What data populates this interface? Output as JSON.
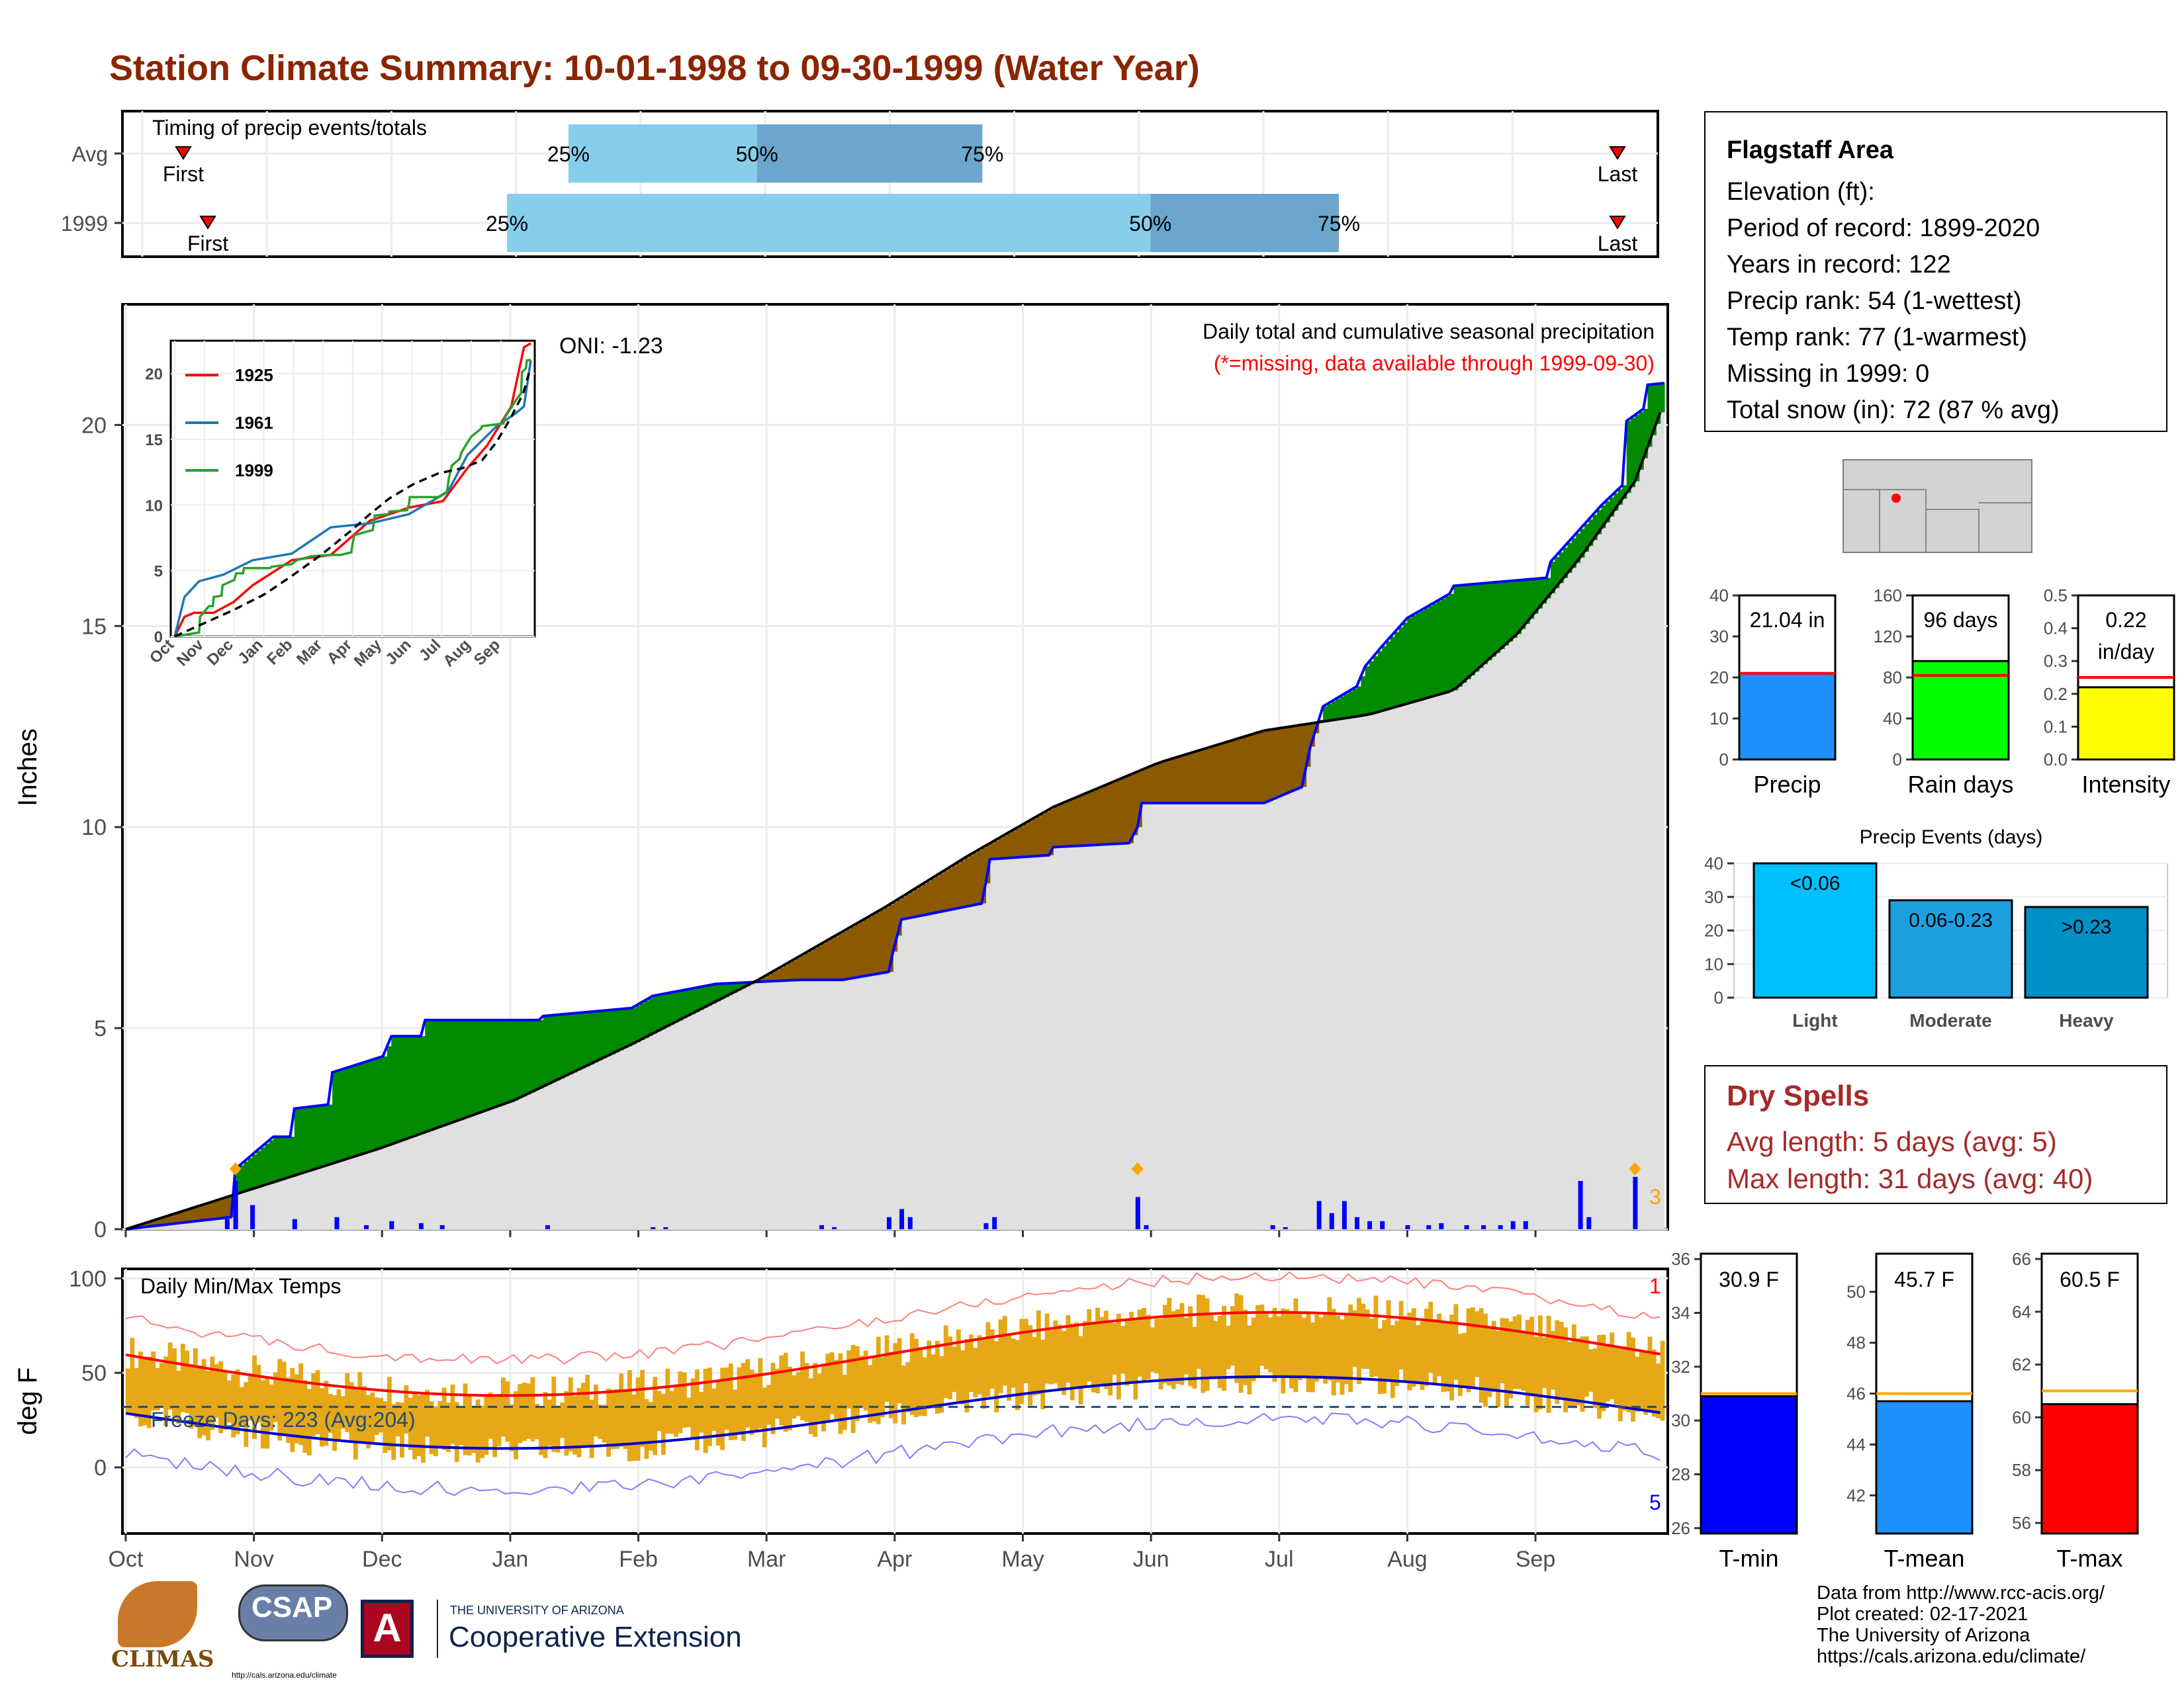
{
  "title": "Station Climate Summary: 10-01-1998 to 09-30-1999 (Water Year)",
  "colors": {
    "title": "#8B2500",
    "light_blue": "#87CEEB",
    "steel_blue": "#6CA6CD",
    "brown": "#8B5A00",
    "green": "#008B00",
    "avg_fill": "#E0E0E0",
    "obs_line": "#0000FF",
    "temp_bar": "#E6A817",
    "red": "#FF0000",
    "dry_spell": "#A52A2A"
  },
  "timing": {
    "label": "Timing of precip events/totals",
    "rows": [
      {
        "name": "Avg",
        "first": 10,
        "p25": 104,
        "p50": 150,
        "p75": 205,
        "last": 360
      },
      {
        "name": "1999",
        "first": 16,
        "p25": 89,
        "p50": 246,
        "p75": 292,
        "last": 360
      }
    ],
    "first_label": "First",
    "last_label": "Last",
    "p25_label": "25%",
    "p50_label": "50%",
    "p75_label": "75%"
  },
  "precip": {
    "ylabel": "Inches",
    "yticks": [
      0,
      5,
      10,
      15,
      20
    ],
    "ymax": 23,
    "annot1": "Daily total and cumulative seasonal precipitation",
    "annot2": "(*=missing, data available through 1999-09-30)",
    "oni": "ONI: -1.23",
    "count_label": "3",
    "avg_cumulative": [
      [
        0,
        0
      ],
      [
        30,
        1.2
      ],
      [
        60,
        2.3
      ],
      [
        90,
        3.4
      ],
      [
        105,
        4.4
      ],
      [
        130,
        5.9
      ],
      [
        160,
        7.7
      ],
      [
        190,
        9.3
      ],
      [
        220,
        10.6
      ],
      [
        255,
        11.9
      ],
      [
        290,
        12.6
      ],
      [
        310,
        12.9
      ],
      [
        330,
        13.6
      ],
      [
        345,
        15.0
      ],
      [
        365,
        17.0
      ],
      [
        380,
        19.0
      ],
      [
        395,
        20.2
      ],
      [
        420,
        20.5
      ]
    ],
    "obs_cumulative_days": [
      0,
      2,
      14,
      27,
      32,
      43,
      55,
      69,
      76,
      111,
      128,
      159,
      183,
      205,
      221,
      241,
      275,
      292,
      306,
      325,
      330,
      348,
      369,
      383,
      405,
      410,
      433,
      458,
      482,
      520
    ],
    "avg_cumulative_season": [
      [
        0,
        0
      ],
      [
        30,
        1.0
      ],
      [
        60,
        2.0
      ],
      [
        92,
        3.2
      ],
      [
        120,
        4.6
      ],
      [
        150,
        6.2
      ],
      [
        180,
        8.0
      ],
      [
        200,
        9.3
      ],
      [
        220,
        10.5
      ],
      [
        245,
        11.6
      ],
      [
        270,
        12.4
      ],
      [
        295,
        12.8
      ],
      [
        315,
        13.4
      ],
      [
        330,
        14.8
      ],
      [
        345,
        16.7
      ],
      [
        358,
        18.6
      ],
      [
        365,
        20.6
      ]
    ],
    "obs_cumulative_season": [
      [
        0,
        0
      ],
      [
        25,
        0.3
      ],
      [
        26,
        1.5
      ],
      [
        35,
        2.3
      ],
      [
        39,
        2.3
      ],
      [
        40,
        3.0
      ],
      [
        48,
        3.1
      ],
      [
        49,
        3.9
      ],
      [
        61,
        4.3
      ],
      [
        63,
        4.8
      ],
      [
        70,
        4.8
      ],
      [
        71,
        5.2
      ],
      [
        98,
        5.2
      ],
      [
        99,
        5.3
      ],
      [
        120,
        5.5
      ],
      [
        125,
        5.8
      ],
      [
        140,
        6.1
      ],
      [
        160,
        6.2
      ],
      [
        170,
        6.2
      ],
      [
        181,
        6.4
      ],
      [
        182,
        6.9
      ],
      [
        184,
        7.7
      ],
      [
        203,
        8.1
      ],
      [
        204,
        8.6
      ],
      [
        205,
        9.2
      ],
      [
        219,
        9.3
      ],
      [
        220,
        9.5
      ],
      [
        238,
        9.6
      ],
      [
        240,
        10.0
      ],
      [
        241,
        10.6
      ],
      [
        250,
        10.6
      ],
      [
        270,
        10.6
      ],
      [
        279,
        11.0
      ],
      [
        281,
        12.0
      ],
      [
        284,
        13.0
      ],
      [
        292,
        13.5
      ],
      [
        294,
        14.0
      ],
      [
        298,
        14.5
      ],
      [
        304,
        15.2
      ],
      [
        314,
        15.8
      ],
      [
        315,
        16.0
      ],
      [
        337,
        16.2
      ],
      [
        338,
        16.6
      ],
      [
        350,
        18.0
      ],
      [
        355,
        18.5
      ],
      [
        356,
        20.1
      ],
      [
        360,
        20.4
      ],
      [
        361,
        21.0
      ],
      [
        365,
        21.04
      ]
    ],
    "daily_bars": [
      [
        24,
        0.25
      ],
      [
        26,
        1.2
      ],
      [
        30,
        0.6
      ],
      [
        40,
        0.25
      ],
      [
        50,
        0.3
      ],
      [
        57,
        0.1
      ],
      [
        63,
        0.2
      ],
      [
        70,
        0.15
      ],
      [
        75,
        0.1
      ],
      [
        100,
        0.1
      ],
      [
        125,
        0.05
      ],
      [
        128,
        0.05
      ],
      [
        165,
        0.1
      ],
      [
        168,
        0.05
      ],
      [
        181,
        0.3
      ],
      [
        184,
        0.5
      ],
      [
        186,
        0.3
      ],
      [
        204,
        0.15
      ],
      [
        206,
        0.3
      ],
      [
        240,
        0.8
      ],
      [
        242,
        0.1
      ],
      [
        272,
        0.1
      ],
      [
        275,
        0.05
      ],
      [
        283,
        0.7
      ],
      [
        286,
        0.4
      ],
      [
        289,
        0.7
      ],
      [
        292,
        0.3
      ],
      [
        295,
        0.2
      ],
      [
        298,
        0.2
      ],
      [
        304,
        0.1
      ],
      [
        309,
        0.1
      ],
      [
        312,
        0.15
      ],
      [
        318,
        0.1
      ],
      [
        322,
        0.1
      ],
      [
        326,
        0.1
      ],
      [
        329,
        0.2
      ],
      [
        332,
        0.2
      ],
      [
        345,
        1.2
      ],
      [
        347,
        0.3
      ],
      [
        358,
        1.3
      ]
    ]
  },
  "inset": {
    "legend": [
      {
        "name": "1925",
        "color": "#FF0000"
      },
      {
        "name": "1961",
        "color": "#1F77B4"
      },
      {
        "name": "1999",
        "color": "#2CA02C"
      }
    ],
    "yticks": [
      0,
      5,
      10,
      15,
      20
    ],
    "months": [
      "Oct",
      "Nov",
      "Dec",
      "Jan",
      "Feb",
      "Mar",
      "Apr",
      "May",
      "Jun",
      "Jul",
      "Aug",
      "Sep"
    ]
  },
  "temps": {
    "ylabel": "deg F",
    "label": "Daily Min/Max Temps",
    "freeze": "Freeze Days: 223 (Avg:204)",
    "yticks": [
      0,
      50,
      100
    ],
    "count_top": "1",
    "count_bottom": "5",
    "freeze_line": 32
  },
  "months": [
    "Oct",
    "Nov",
    "Dec",
    "Jan",
    "Feb",
    "Mar",
    "Apr",
    "May",
    "Jun",
    "Jul",
    "Aug",
    "Sep"
  ],
  "station": {
    "name": "Flagstaff Area",
    "elevation": "Elevation (ft):",
    "period": "Period of record: 1899-2020",
    "years": "Years in record: 122",
    "precip_rank": "Precip rank: 54 (1-wettest)",
    "temp_rank": "Temp rank: 77 (1-warmest)",
    "missing": "Missing in 1999: 0",
    "snow": "Total snow (in): 72 (87 % avg)"
  },
  "mini_bars": [
    {
      "label": "Precip",
      "value": 21.04,
      "avg": 21.0,
      "ymax": 40,
      "ticks": [
        0,
        10,
        20,
        30,
        40
      ],
      "text": "21.04 in",
      "color": "#1E90FF"
    },
    {
      "label": "Rain days",
      "value": 96,
      "avg": 82,
      "ymax": 160,
      "ticks": [
        0,
        40,
        80,
        120,
        160
      ],
      "text": "96 days",
      "color": "#00FF00"
    },
    {
      "label": "Intensity",
      "value": 0.22,
      "avg": 0.25,
      "ymax": 0.5,
      "ticks": [
        0.0,
        0.1,
        0.2,
        0.3,
        0.4,
        0.5
      ],
      "text": "0.22",
      "text2": "in/day",
      "color": "#FFFF00"
    }
  ],
  "events": {
    "title": "Precip Events (days)",
    "ymax": 40,
    "ticks": [
      0,
      10,
      20,
      30,
      40
    ],
    "bars": [
      {
        "label": "Light",
        "value": 40,
        "text": "<0.06",
        "color": "#00BFFF"
      },
      {
        "label": "Moderate",
        "value": 29,
        "text": "0.06-0.23",
        "color": "#1E9FE0"
      },
      {
        "label": "Heavy",
        "value": 27,
        "text": ">0.23",
        "color": "#0090C8"
      }
    ]
  },
  "dry_spells": {
    "title": "Dry Spells",
    "avg_length": "Avg length: 5 days (avg: 5)",
    "max_length": "Max length: 31 days (avg: 40)"
  },
  "temp_bars": [
    {
      "label": "T-min",
      "value": 30.9,
      "avg": 31.0,
      "ymin": 25.8,
      "ymax": 36.2,
      "ticks": [
        26,
        28,
        30,
        32,
        34,
        36
      ],
      "text": "30.9 F",
      "color": "#0000FF"
    },
    {
      "label": "T-mean",
      "value": 45.7,
      "avg": 46.0,
      "ymin": 40.5,
      "ymax": 51.5,
      "ticks": [
        42,
        44,
        46,
        48,
        50
      ],
      "text": "45.7 F",
      "color": "#1E90FF"
    },
    {
      "label": "T-max",
      "value": 60.5,
      "avg": 61.0,
      "ymin": 55.6,
      "ymax": 66.2,
      "ticks": [
        56,
        58,
        60,
        62,
        64,
        66
      ],
      "text": "60.5 F",
      "color": "#FF0000"
    }
  ],
  "footer": {
    "line1": "Data from http://www.rcc-acis.org/",
    "line2": "Plot created: 02-17-2021",
    "line3": "The University of Arizona",
    "line4": "https://cals.arizona.edu/climate/",
    "climas": "CLIMAS",
    "csap": "CSAP",
    "csap_url": "http://cals.arizona.edu/climate",
    "ua_small": "THE UNIVERSITY OF ARIZONA",
    "ua_big": "Cooperative Extension"
  }
}
